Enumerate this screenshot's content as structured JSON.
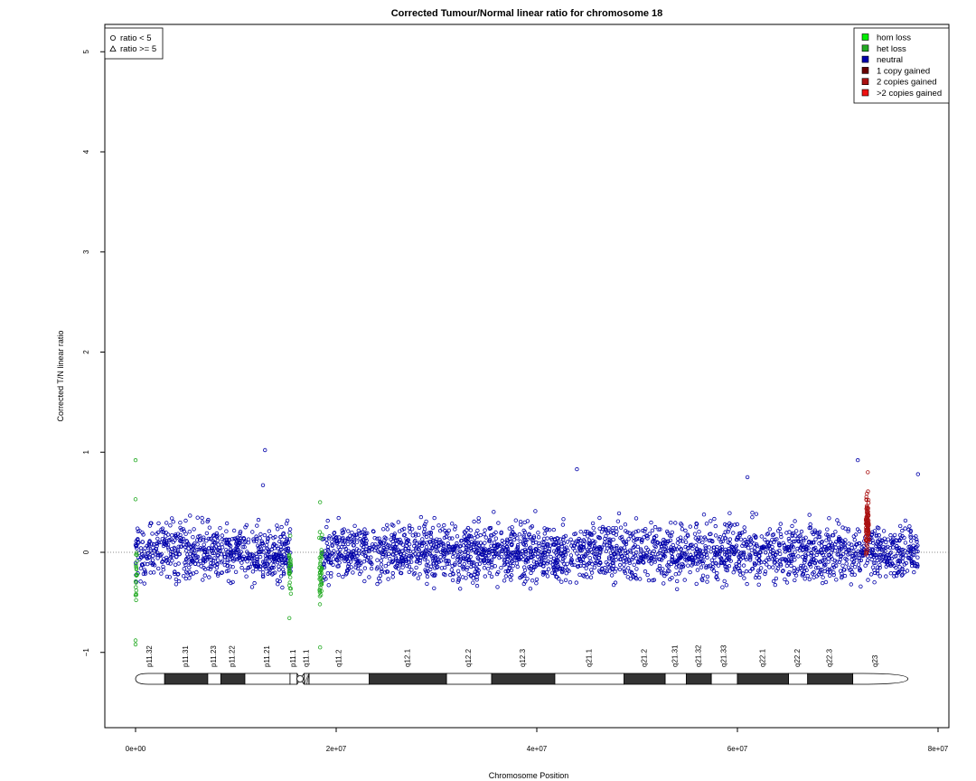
{
  "chart_data": {
    "type": "scatter",
    "title": "Corrected Tumour/Normal linear ratio for chromosome  18",
    "xlabel": "Chromosome Position",
    "ylabel": "Corrected T/N linear ratio",
    "xlim": [
      0,
      80000000
    ],
    "ylim": [
      -1.5,
      5.2
    ],
    "x_ticks": [
      0,
      20000000,
      40000000,
      60000000,
      80000000
    ],
    "x_tick_labels": [
      "0e+00",
      "2e+07",
      "4e+07",
      "6e+07",
      "8e+07"
    ],
    "y_ticks": [
      -1,
      0,
      1,
      2,
      3,
      4,
      5
    ],
    "y_tick_labels": [
      "−1",
      "0",
      "1",
      "2",
      "3",
      "4",
      "5"
    ],
    "reference_line_y": 0,
    "shape_legend": {
      "position": "top-left",
      "entries": [
        {
          "label": "ratio < 5",
          "shape": "circle"
        },
        {
          "label": "ratio >= 5",
          "shape": "triangle"
        }
      ]
    },
    "color_legend": {
      "position": "top-right",
      "entries": [
        {
          "label": "hom loss",
          "color": "#00ee00"
        },
        {
          "label": "het loss",
          "color": "#22aa22"
        },
        {
          "label": "neutral",
          "color": "#0000aa"
        },
        {
          "label": "1 copy gained",
          "color": "#660000"
        },
        {
          "label": "2 copies gained",
          "color": "#aa1111"
        },
        {
          "label": ">2 copies gained",
          "color": "#ee1111"
        }
      ]
    },
    "series": [
      {
        "name": "neutral",
        "color": "#0000aa",
        "x_ranges": [
          [
            0,
            15500000
          ],
          [
            18600000,
            78000000
          ]
        ],
        "y_mean": 0.0,
        "y_spread": 0.25
      },
      {
        "name": "het loss",
        "color": "#22aa22",
        "x_ranges": [
          [
            0,
            150000
          ],
          [
            15300000,
            15500000
          ],
          [
            18300000,
            18600000
          ]
        ],
        "y_mean": -0.2,
        "y_spread": 0.3
      },
      {
        "name": "2 copies gained",
        "color": "#aa1111",
        "x_ranges": [
          [
            72800000,
            73100000
          ]
        ],
        "y_mean": 0.3,
        "y_spread": 0.25
      }
    ],
    "outliers": [
      {
        "x": 0,
        "y": 0.92,
        "series": "het loss"
      },
      {
        "x": 0,
        "y": 0.53,
        "series": "het loss"
      },
      {
        "x": 0,
        "y": -0.88,
        "series": "het loss"
      },
      {
        "x": 0,
        "y": -0.92,
        "series": "het loss"
      },
      {
        "x": 12900000,
        "y": 1.02,
        "series": "neutral"
      },
      {
        "x": 18400000,
        "y": 0.5,
        "series": "het loss"
      },
      {
        "x": 18400000,
        "y": -0.95,
        "series": "het loss"
      },
      {
        "x": 44000000,
        "y": 0.83,
        "series": "neutral"
      },
      {
        "x": 72000000,
        "y": 0.92,
        "series": "neutral"
      },
      {
        "x": 78000000,
        "y": 0.78,
        "series": "neutral"
      },
      {
        "x": 61000000,
        "y": 0.75,
        "series": "neutral"
      },
      {
        "x": 12700000,
        "y": 0.67,
        "series": "neutral"
      },
      {
        "x": 73000000,
        "y": 0.8,
        "series": "2 copies gained"
      }
    ],
    "ideogram": {
      "centromere_x": 16400000,
      "bands": [
        {
          "label": "p11.32",
          "start": 0,
          "end": 2900000,
          "stain": "gneg"
        },
        {
          "label": "p11.31",
          "start": 2900000,
          "end": 7200000,
          "stain": "gpos"
        },
        {
          "label": "p11.23",
          "start": 7200000,
          "end": 8500000,
          "stain": "gneg"
        },
        {
          "label": "p11.22",
          "start": 8500000,
          "end": 10900000,
          "stain": "gpos"
        },
        {
          "label": "p11.21",
          "start": 10900000,
          "end": 15400000,
          "stain": "gneg"
        },
        {
          "label": "p11.1",
          "start": 15400000,
          "end": 16100000,
          "stain": "acen"
        },
        {
          "label": "q11.1",
          "start": 16800000,
          "end": 17300000,
          "stain": "gvar"
        },
        {
          "label": "q11.2",
          "start": 17300000,
          "end": 23300000,
          "stain": "gneg"
        },
        {
          "label": "q12.1",
          "start": 23300000,
          "end": 31000000,
          "stain": "gpos"
        },
        {
          "label": "q12.2",
          "start": 31000000,
          "end": 35500000,
          "stain": "gneg"
        },
        {
          "label": "q12.3",
          "start": 35500000,
          "end": 41800000,
          "stain": "gpos"
        },
        {
          "label": "q21.1",
          "start": 41800000,
          "end": 48700000,
          "stain": "gneg"
        },
        {
          "label": "q21.2",
          "start": 48700000,
          "end": 52800000,
          "stain": "gpos"
        },
        {
          "label": "q21.31",
          "start": 52800000,
          "end": 54900000,
          "stain": "gneg"
        },
        {
          "label": "q21.32",
          "start": 54900000,
          "end": 57400000,
          "stain": "gpos"
        },
        {
          "label": "q21.33",
          "start": 57400000,
          "end": 60000000,
          "stain": "gneg"
        },
        {
          "label": "q22.1",
          "start": 60000000,
          "end": 65100000,
          "stain": "gpos"
        },
        {
          "label": "q22.2",
          "start": 65100000,
          "end": 67000000,
          "stain": "gneg"
        },
        {
          "label": "q22.3",
          "start": 67000000,
          "end": 71500000,
          "stain": "gpos"
        },
        {
          "label": "q23",
          "start": 71500000,
          "end": 76100000,
          "stain": "gneg"
        }
      ]
    }
  }
}
